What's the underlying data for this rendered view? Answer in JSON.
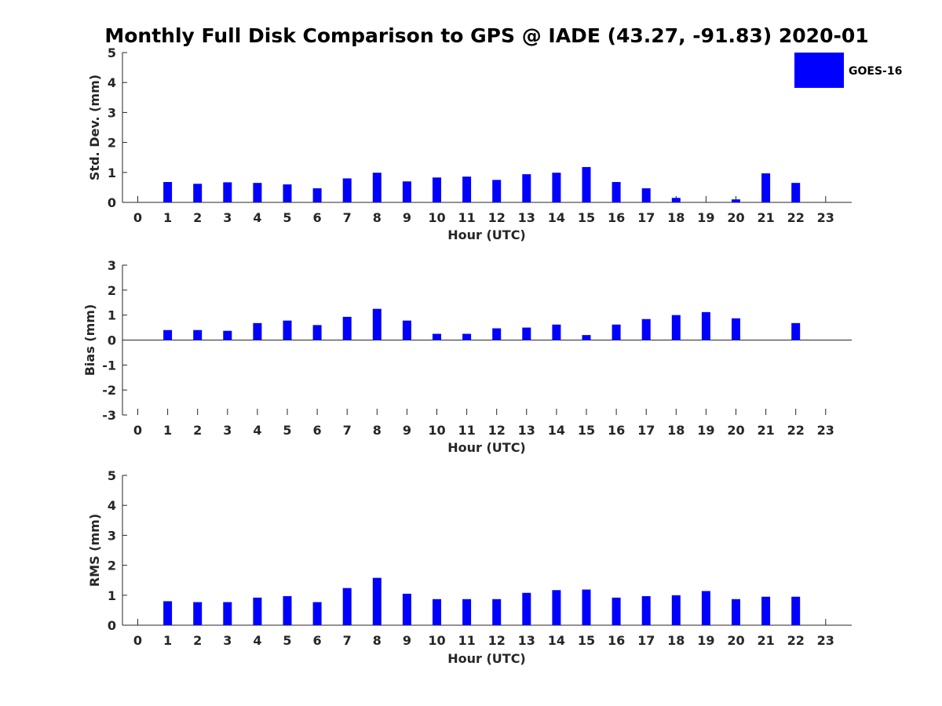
{
  "title": "Monthly Full Disk Comparison to GPS @ IADE (43.27, -91.83) 2020-01",
  "colors": {
    "bar": "#0000ff",
    "axis": "#262626"
  },
  "legend": {
    "label": "GOES-16",
    "placement": "top-right"
  },
  "chart_data": [
    {
      "type": "bar",
      "title": "Monthly Full Disk Comparison to GPS @ IADE (43.27, -91.83) 2020-01",
      "xlabel": "Hour (UTC)",
      "ylabel": "Std. Dev. (mm)",
      "ylim": [
        0,
        5
      ],
      "yticks": [
        0,
        1,
        2,
        3,
        4,
        5
      ],
      "grid": false,
      "categories": [
        0,
        1,
        2,
        3,
        4,
        5,
        6,
        7,
        8,
        9,
        10,
        11,
        12,
        13,
        14,
        15,
        16,
        17,
        18,
        19,
        20,
        21,
        22,
        23
      ],
      "series": [
        {
          "name": "GOES-16",
          "values": [
            null,
            0.68,
            0.62,
            0.67,
            0.65,
            0.6,
            0.47,
            0.8,
            0.99,
            0.7,
            0.83,
            0.86,
            0.75,
            0.94,
            0.99,
            1.18,
            0.68,
            0.47,
            0.15,
            null,
            0.1,
            0.97,
            0.65,
            null
          ]
        }
      ]
    },
    {
      "type": "bar",
      "xlabel": "Hour (UTC)",
      "ylabel": "Bias (mm)",
      "ylim": [
        -3,
        3
      ],
      "yticks": [
        -3,
        -2,
        -1,
        0,
        1,
        2,
        3
      ],
      "grid": false,
      "categories": [
        0,
        1,
        2,
        3,
        4,
        5,
        6,
        7,
        8,
        9,
        10,
        11,
        12,
        13,
        14,
        15,
        16,
        17,
        18,
        19,
        20,
        21,
        22,
        23
      ],
      "series": [
        {
          "name": "GOES-16",
          "values": [
            null,
            0.4,
            0.4,
            0.37,
            0.68,
            0.78,
            0.6,
            0.93,
            1.25,
            0.78,
            0.25,
            0.25,
            0.47,
            0.5,
            0.62,
            0.2,
            0.62,
            0.84,
            1.0,
            1.12,
            0.87,
            null,
            0.68,
            null
          ]
        }
      ]
    },
    {
      "type": "bar",
      "xlabel": "Hour (UTC)",
      "ylabel": "RMS (mm)",
      "ylim": [
        0,
        5
      ],
      "yticks": [
        0,
        1,
        2,
        3,
        4,
        5
      ],
      "grid": false,
      "categories": [
        0,
        1,
        2,
        3,
        4,
        5,
        6,
        7,
        8,
        9,
        10,
        11,
        12,
        13,
        14,
        15,
        16,
        17,
        18,
        19,
        20,
        21,
        22,
        23
      ],
      "series": [
        {
          "name": "GOES-16",
          "values": [
            null,
            0.8,
            0.77,
            0.77,
            0.92,
            0.97,
            0.77,
            1.24,
            1.58,
            1.05,
            0.87,
            0.87,
            0.87,
            1.08,
            1.17,
            1.19,
            0.92,
            0.97,
            1.0,
            1.14,
            0.87,
            0.95,
            0.95,
            null
          ]
        }
      ]
    }
  ]
}
